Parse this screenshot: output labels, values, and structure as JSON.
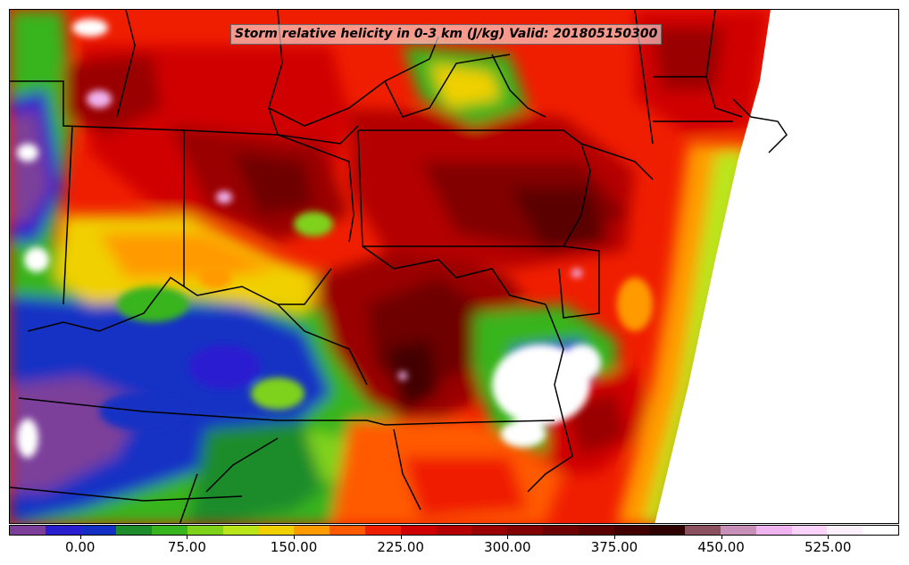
{
  "title": "Storm relative helicity in 0-3 km (J/kg) Valid: 201805150300",
  "colorbar": {
    "colors": [
      "#7b3f9a",
      "#2a1fd0",
      "#1430c4",
      "#1d8c2a",
      "#38b41e",
      "#7fd21a",
      "#b9e61a",
      "#f0d000",
      "#ff9a00",
      "#ff5a00",
      "#f01e00",
      "#d00000",
      "#b40000",
      "#9a0000",
      "#820000",
      "#6e0000",
      "#5a0000",
      "#420000",
      "#2e0000",
      "#8a5060",
      "#c890b8",
      "#f0b4f0",
      "#fad2fa",
      "#fdf0fd",
      "#ffffff"
    ],
    "tick_labels": [
      "0.00",
      "75.00",
      "150.00",
      "225.00",
      "300.00",
      "375.00",
      "450.00",
      "525.00"
    ],
    "tick_values": [
      0,
      75,
      150,
      225,
      300,
      375,
      450,
      525
    ],
    "range": [
      -50,
      575
    ]
  }
}
